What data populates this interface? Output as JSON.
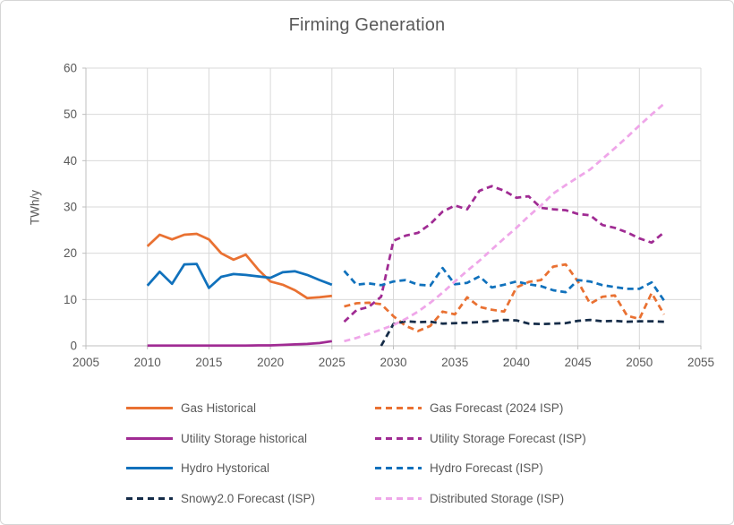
{
  "title": "Firming Generation",
  "y_axis": {
    "label": "TWh/y",
    "ticks": [
      0,
      10,
      20,
      30,
      40,
      50,
      60
    ]
  },
  "x_axis": {
    "ticks": [
      2005,
      2010,
      2015,
      2020,
      2025,
      2030,
      2035,
      2040,
      2045,
      2050,
      2055
    ]
  },
  "colors": {
    "gas": "#E97132",
    "utility_storage": "#A02B93",
    "hydro": "#1071BC",
    "snowy": "#152C48",
    "distributed_storage": "#EFA6E9",
    "text": "#595959",
    "gridline": "#D9D9D9",
    "axis_line": "#BFBFBF"
  },
  "legend": [
    {
      "label": "Gas Historical",
      "color": "#E97132",
      "dash": false
    },
    {
      "label": "Utility Storage historical",
      "color": "#A02B93",
      "dash": false
    },
    {
      "label": "Hydro Hystorical",
      "color": "#1071BC",
      "dash": false
    },
    {
      "label": "Snowy2.0 Forecast (ISP)",
      "color": "#152C48",
      "dash": true
    },
    {
      "label": "Gas Forecast (2024 ISP)",
      "color": "#E97132",
      "dash": true
    },
    {
      "label": "Utility Storage Forecast (ISP)",
      "color": "#A02B93",
      "dash": true
    },
    {
      "label": "Hydro Forecast (ISP)",
      "color": "#1071BC",
      "dash": true
    },
    {
      "label": "Distributed Storage (ISP)",
      "color": "#EFA6E9",
      "dash": true
    }
  ],
  "chart_data": {
    "type": "line",
    "title": "Firming Generation",
    "xlabel": "",
    "ylabel": "TWh/y",
    "xlim": [
      2005,
      2055
    ],
    "ylim": [
      0,
      60
    ],
    "x_tick_step": 5,
    "y_tick_step": 10,
    "grid": true,
    "legend_position": "bottom",
    "series": [
      {
        "name": "Gas Historical",
        "color": "#E97132",
        "dash": false,
        "start_year": 2010,
        "values": [
          21.5,
          24.0,
          23.0,
          24.0,
          24.2,
          23.0,
          20.0,
          18.6,
          19.7,
          16.5,
          13.9,
          13.2,
          12.0,
          10.3,
          10.5,
          10.8
        ]
      },
      {
        "name": "Gas Forecast (2024 ISP)",
        "color": "#E97132",
        "dash": true,
        "start_year": 2026,
        "values": [
          8.5,
          9.2,
          9.3,
          9.0,
          6.4,
          4.3,
          3.2,
          4.3,
          7.4,
          6.8,
          10.5,
          8.4,
          7.8,
          7.4,
          12.6,
          13.8,
          14.2,
          17.1,
          17.6,
          13.9,
          9.1,
          10.6,
          10.9,
          6.5,
          5.8,
          11.4,
          6.8
        ]
      },
      {
        "name": "Utility Storage historical",
        "color": "#A02B93",
        "dash": false,
        "start_year": 2010,
        "values": [
          0.05,
          0.05,
          0.05,
          0.05,
          0.05,
          0.05,
          0.05,
          0.05,
          0.05,
          0.1,
          0.1,
          0.2,
          0.3,
          0.4,
          0.6,
          1.0
        ]
      },
      {
        "name": "Utility Storage Forecast (ISP)",
        "color": "#A02B93",
        "dash": true,
        "start_year": 2026,
        "values": [
          5.2,
          7.7,
          8.4,
          10.6,
          22.7,
          23.8,
          24.4,
          26.3,
          29.0,
          30.3,
          29.5,
          33.5,
          34.5,
          33.5,
          32.0,
          32.3,
          29.8,
          29.5,
          29.3,
          28.5,
          28.2,
          26.1,
          25.5,
          24.5,
          23.2,
          22.3,
          24.5
        ]
      },
      {
        "name": "Hydro Hystorical",
        "color": "#1071BC",
        "dash": false,
        "start_year": 2010,
        "values": [
          13.0,
          16.0,
          13.4,
          17.6,
          17.7,
          12.5,
          14.9,
          15.5,
          15.3,
          15.0,
          14.7,
          15.9,
          16.1,
          15.3,
          14.2,
          13.2
        ]
      },
      {
        "name": "Hydro Forecast (ISP)",
        "color": "#1071BC",
        "dash": true,
        "start_year": 2026,
        "values": [
          16.2,
          13.2,
          13.5,
          13.1,
          13.9,
          14.2,
          13.2,
          13.0,
          16.8,
          13.3,
          13.6,
          15.0,
          12.6,
          13.2,
          13.9,
          13.3,
          12.9,
          12.0,
          11.6,
          14.2,
          13.9,
          13.1,
          12.7,
          12.3,
          12.3,
          13.7,
          9.8
        ]
      },
      {
        "name": "Snowy2.0 Forecast (ISP)",
        "color": "#152C48",
        "dash": true,
        "start_year": 2029,
        "values": [
          0.0,
          4.7,
          5.3,
          5.1,
          5.2,
          4.8,
          4.9,
          5.0,
          5.1,
          5.3,
          5.6,
          5.5,
          4.8,
          4.7,
          4.8,
          4.9,
          5.4,
          5.6,
          5.3,
          5.4,
          5.2,
          5.3,
          5.3,
          5.2
        ]
      },
      {
        "name": "Distributed Storage (ISP)",
        "color": "#EFA6E9",
        "dash": true,
        "start_year": 2026,
        "values": [
          1.0,
          1.7,
          2.6,
          3.5,
          4.5,
          5.8,
          7.4,
          9.3,
          11.5,
          13.9,
          16.2,
          18.4,
          20.8,
          23.2,
          25.5,
          28.0,
          30.3,
          32.9,
          34.7,
          36.4,
          38.1,
          40.4,
          42.7,
          45.1,
          47.6,
          50.0,
          52.3
        ]
      }
    ]
  }
}
